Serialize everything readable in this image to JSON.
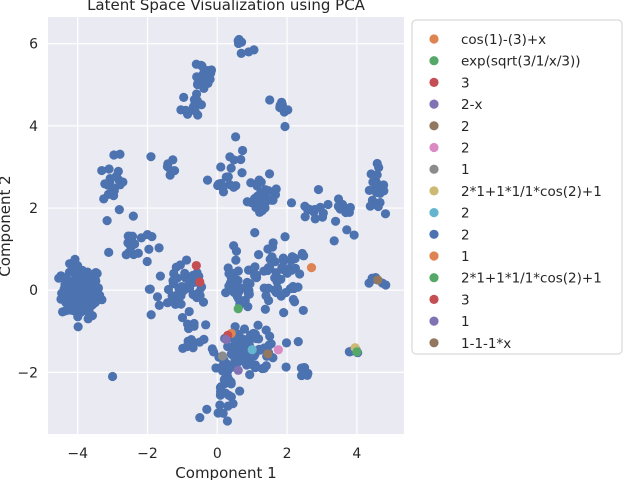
{
  "chart_data": {
    "type": "scatter",
    "title": "Latent Space Visualization using PCA",
    "xlabel": "Component 1",
    "ylabel": "Component 2",
    "xlim": [
      -4.85,
      5.35
    ],
    "ylim": [
      -3.5,
      6.65
    ],
    "xticks": [
      -4,
      -2,
      0,
      2,
      4
    ],
    "yticks": [
      -2,
      0,
      2,
      4,
      6
    ],
    "xtick_labels": [
      "−4",
      "−2",
      "0",
      "2",
      "4"
    ],
    "ytick_labels": [
      "−2",
      "0",
      "2",
      "4",
      "6"
    ],
    "grid": true,
    "background": "#eaeaf2",
    "legend_position": "right, outside plot",
    "series": [
      {
        "name": "cos(1)-(3)+x",
        "color": "#dd8452",
        "points": [
          [
            2.7,
            0.55
          ]
        ]
      },
      {
        "name": "exp(sqrt(3/1/x/3))",
        "color": "#55a868",
        "points": [
          [
            0.6,
            -0.45
          ]
        ]
      },
      {
        "name": "3",
        "color": "#c44e52",
        "points": [
          [
            -0.6,
            0.6
          ],
          [
            -0.5,
            0.2
          ]
        ]
      },
      {
        "name": "2-x",
        "color": "#8172b3",
        "points": [
          [
            0.6,
            -1.95
          ]
        ]
      },
      {
        "name": "2",
        "color": "#937860",
        "points": [
          [
            4.6,
            0.25
          ]
        ]
      },
      {
        "name": "2",
        "color": "#da8bc3",
        "points": [
          [
            1.75,
            -1.45
          ]
        ]
      },
      {
        "name": "1",
        "color": "#8c8c8c",
        "points": [
          [
            0.15,
            -1.6
          ]
        ]
      },
      {
        "name": "2*1+1*1/1*cos(2)+1",
        "color": "#ccb974",
        "points": [
          [
            3.95,
            -1.4
          ]
        ]
      },
      {
        "name": "2",
        "color": "#64b5cd",
        "points": [
          [
            1.0,
            -1.45
          ]
        ]
      },
      {
        "name": "2",
        "color": "#4c72b0",
        "points": [],
        "note": "main cluster points drawn by script"
      },
      {
        "name": "1",
        "color": "#dd8452",
        "points": [
          [
            0.4,
            -1.05
          ]
        ]
      },
      {
        "name": "2*1+1*1/1*cos(2)+1",
        "color": "#55a868",
        "points": [
          [
            4.0,
            -1.5
          ]
        ]
      },
      {
        "name": "3",
        "color": "#c44e52",
        "points": [
          [
            0.3,
            -1.1
          ]
        ]
      },
      {
        "name": "1",
        "color": "#8172b3",
        "points": [
          [
            0.25,
            -1.2
          ]
        ]
      },
      {
        "name": "1-1-1*x",
        "color": "#937860",
        "points": [
          [
            1.45,
            -1.55
          ]
        ]
      }
    ],
    "main_clusters": [
      {
        "cx": -3.9,
        "cy": -0.05,
        "sx": 0.28,
        "sy": 0.32,
        "n": 130
      },
      {
        "cx": -0.4,
        "cy": 5.25,
        "sx": 0.18,
        "sy": 0.2,
        "n": 22
      },
      {
        "cx": 0.7,
        "cy": 5.95,
        "sx": 0.1,
        "sy": 0.15,
        "n": 5
      },
      {
        "cx": -0.65,
        "cy": 4.6,
        "sx": 0.18,
        "sy": 0.25,
        "n": 14
      },
      {
        "cx": 1.85,
        "cy": 4.4,
        "sx": 0.1,
        "sy": 0.2,
        "n": 10
      },
      {
        "cx": 0.5,
        "cy": 3.5,
        "sx": 0.1,
        "sy": 0.25,
        "n": 6
      },
      {
        "cx": -2.95,
        "cy": 2.5,
        "sx": 0.2,
        "sy": 0.35,
        "n": 22
      },
      {
        "cx": -2.5,
        "cy": 1.1,
        "sx": 0.3,
        "sy": 0.25,
        "n": 20
      },
      {
        "cx": -1.3,
        "cy": 3.0,
        "sx": 0.15,
        "sy": 0.1,
        "n": 5
      },
      {
        "cx": 0.3,
        "cy": 2.65,
        "sx": 0.2,
        "sy": 0.12,
        "n": 12
      },
      {
        "cx": 1.3,
        "cy": 2.25,
        "sx": 0.22,
        "sy": 0.25,
        "n": 28
      },
      {
        "cx": 3.0,
        "cy": 2.0,
        "sx": 0.5,
        "sy": 0.1,
        "n": 16
      },
      {
        "cx": 3.75,
        "cy": 1.7,
        "sx": 0.25,
        "sy": 0.2,
        "n": 8
      },
      {
        "cx": 4.55,
        "cy": 2.5,
        "sx": 0.12,
        "sy": 0.25,
        "n": 22
      },
      {
        "cx": -1.0,
        "cy": 0.05,
        "sx": 0.45,
        "sy": 0.35,
        "n": 45
      },
      {
        "cx": 0.6,
        "cy": 0.1,
        "sx": 0.3,
        "sy": 0.3,
        "n": 30
      },
      {
        "cx": 1.8,
        "cy": 0.2,
        "sx": 0.45,
        "sy": 0.45,
        "n": 55
      },
      {
        "cx": 0.9,
        "cy": -1.45,
        "sx": 0.45,
        "sy": 0.25,
        "n": 90
      },
      {
        "cx": 0.2,
        "cy": -2.4,
        "sx": 0.15,
        "sy": 0.35,
        "n": 25
      },
      {
        "cx": -0.8,
        "cy": -1.0,
        "sx": 0.2,
        "sy": 0.35,
        "n": 15
      },
      {
        "cx": 2.45,
        "cy": -2.05,
        "sx": 0.1,
        "sy": 0.1,
        "n": 8
      },
      {
        "cx": 3.95,
        "cy": -1.5,
        "sx": 0.08,
        "sy": 0.06,
        "n": 6
      },
      {
        "cx": 4.6,
        "cy": 0.2,
        "sx": 0.12,
        "sy": 0.08,
        "n": 6
      }
    ],
    "main_outliers": [
      [
        -3.0,
        -2.1
      ],
      [
        -0.5,
        -3.1
      ],
      [
        -0.3,
        -2.9
      ],
      [
        -1.9,
        3.25
      ],
      [
        -1.35,
        2.8
      ],
      [
        0.9,
        5.8
      ],
      [
        2.9,
        2.45
      ],
      [
        3.35,
        1.2
      ],
      [
        -3.1,
        2.95
      ],
      [
        0.1,
        3.0
      ],
      [
        -0.6,
        5.5
      ],
      [
        1.05,
        5.85
      ],
      [
        0.55,
        0.95
      ],
      [
        3.8,
        -1.5
      ]
    ]
  }
}
